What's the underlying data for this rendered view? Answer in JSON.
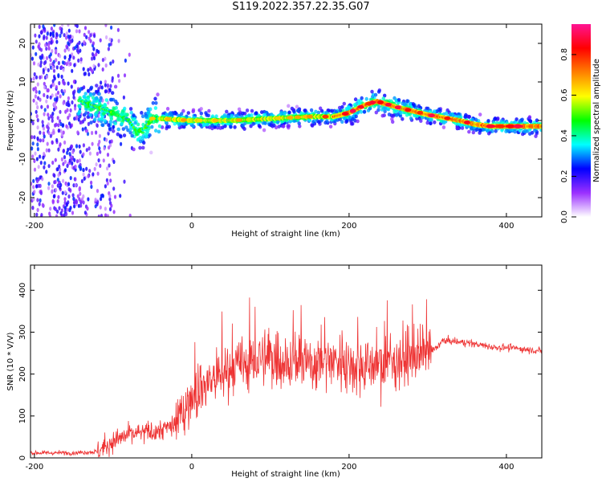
{
  "title": "S119.2022.357.22.35.G07",
  "chart_data": [
    {
      "type": "heatmap",
      "xlabel": "Height of straight line (km)",
      "ylabel": "Frequency (Hz)",
      "xlim": [
        -205,
        445
      ],
      "ylim": [
        -25,
        25
      ],
      "xticks": [
        -200,
        0,
        200,
        400
      ],
      "yticks": [
        -20,
        -10,
        0,
        10,
        20
      ],
      "colorbar": {
        "label": "Normalized spectral amplitude",
        "range": [
          0,
          0.95
        ],
        "ticks": [
          0.0,
          0.2,
          0.4,
          0.6,
          0.8
        ],
        "colors": [
          "#ffffff",
          "#9b30ff",
          "#0000ff",
          "#00ffff",
          "#00ff00",
          "#ffff00",
          "#ff8000",
          "#ff0000",
          "#ff1493"
        ]
      },
      "ridge": {
        "x": [
          -140,
          -100,
          -80,
          -70,
          -60,
          -50,
          -40,
          0,
          50,
          100,
          150,
          180,
          200,
          220,
          235,
          260,
          300,
          340,
          360,
          380,
          400,
          445
        ],
        "freq": [
          5,
          2,
          0,
          -3,
          -2,
          0.5,
          0.5,
          0,
          0,
          0.5,
          1,
          1,
          2,
          4,
          5,
          3.5,
          1.5,
          0,
          -1,
          -1.5,
          -1.5,
          -1.5
        ]
      },
      "grid": false,
      "legend": "none"
    },
    {
      "type": "line",
      "xlabel": "Height of straight line (km)",
      "ylabel": "SNR (10 * V/V)",
      "xlim": [
        -205,
        445
      ],
      "ylim": [
        0,
        460
      ],
      "xticks": [
        -200,
        0,
        200,
        400
      ],
      "yticks": [
        0,
        100,
        200,
        300,
        400
      ],
      "color": "#ee3333",
      "series": [
        {
          "x": [
            -205,
            -150,
            -120,
            -100,
            -80,
            -60,
            -40,
            -20,
            0,
            20,
            40,
            60,
            80,
            100,
            120,
            140,
            160,
            180,
            200,
            220,
            240,
            260,
            280,
            300,
            320,
            350,
            380,
            410,
            445
          ],
          "values": [
            12,
            12,
            15,
            40,
            55,
            60,
            65,
            80,
            150,
            180,
            200,
            220,
            230,
            240,
            230,
            225,
            230,
            235,
            225,
            220,
            225,
            235,
            240,
            245,
            280,
            275,
            265,
            262,
            255
          ]
        }
      ],
      "grid": false,
      "legend": "none"
    }
  ]
}
